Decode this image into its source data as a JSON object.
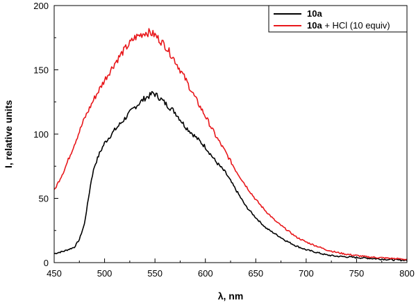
{
  "chart_data": {
    "type": "line",
    "xlabel": "λ, nm",
    "ylabel": "I, relative units",
    "xlim": [
      450,
      800
    ],
    "ylim": [
      0,
      200
    ],
    "x_ticks": [
      450,
      500,
      550,
      600,
      650,
      700,
      750,
      800
    ],
    "y_ticks": [
      0,
      50,
      100,
      150,
      200
    ],
    "grid": false,
    "legend_position": "top-right",
    "series": [
      {
        "name": "10a",
        "legend_bold": "10a",
        "legend_rest": "",
        "color": "#000000",
        "x": [
          450,
          460,
          470,
          475,
          480,
          483,
          487,
          490,
          495,
          500,
          510,
          520,
          530,
          540,
          545,
          548,
          550,
          555,
          560,
          570,
          580,
          590,
          600,
          610,
          620,
          630,
          640,
          650,
          660,
          670,
          680,
          690,
          700,
          710,
          720,
          730,
          740,
          750,
          760,
          770,
          780,
          790,
          800
        ],
        "y": [
          7,
          9,
          12,
          18,
          30,
          45,
          65,
          75,
          85,
          93,
          103,
          112,
          121,
          128,
          130,
          132,
          131,
          128,
          124,
          117,
          106,
          98,
          90,
          79,
          70,
          57,
          44,
          35,
          27,
          22,
          17,
          13,
          10,
          8,
          6,
          5,
          4.5,
          4,
          3.5,
          3,
          2.5,
          2,
          2
        ]
      },
      {
        "name": "10a + HCl (10 equiv)",
        "legend_bold": "10a",
        "legend_rest": " + HCl (10 equiv)",
        "color": "#e8171b",
        "x": [
          450,
          460,
          470,
          480,
          490,
          500,
          510,
          520,
          530,
          540,
          545,
          550,
          560,
          570,
          580,
          590,
          600,
          610,
          620,
          630,
          640,
          650,
          660,
          670,
          680,
          690,
          700,
          710,
          720,
          730,
          740,
          750,
          760,
          770,
          780,
          790,
          800
        ],
        "y": [
          56,
          72,
          92,
          112,
          128,
          142,
          155,
          166,
          175,
          179,
          179,
          177,
          169,
          157,
          143,
          128,
          114,
          99,
          86,
          72,
          60,
          49,
          40,
          32,
          26,
          20,
          16,
          13,
          10,
          8,
          6.5,
          5.5,
          4.5,
          4,
          3.5,
          3,
          2.5
        ]
      }
    ]
  }
}
